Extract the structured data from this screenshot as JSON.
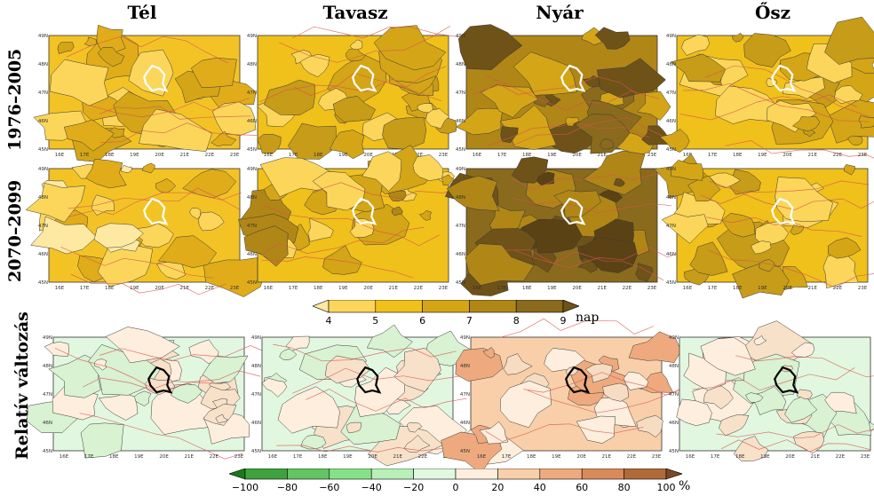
{
  "season_titles": [
    "Tél",
    "Tavasz",
    "Nyár",
    "Ősz"
  ],
  "row_labels": [
    "1976–2005",
    "2070–2099",
    "Relatív változás"
  ],
  "lat_ticks": [
    "45N",
    "46N",
    "47N",
    "48N",
    "49N"
  ],
  "lon_ticks": [
    "16E",
    "17E",
    "18E",
    "19E",
    "20E",
    "21E",
    "22E",
    "23E"
  ],
  "colorbar_days": {
    "ticks": [
      "4",
      "5",
      "6",
      "7",
      "8",
      "9"
    ],
    "unit": "nap",
    "colors": [
      "#fde9a2",
      "#fbd65a",
      "#f0c01b",
      "#d4a516",
      "#b08617",
      "#8a6a1c",
      "#6e5218"
    ]
  },
  "colorbar_pct": {
    "ticks": [
      "−100",
      "−80",
      "−60",
      "−40",
      "−20",
      "0",
      "20",
      "40",
      "60",
      "80",
      "100"
    ],
    "unit": "%",
    "colors": [
      "#1a7a1a",
      "#3ea33e",
      "#62c462",
      "#86e286",
      "#b8f0b8",
      "#e2f7e0",
      "#fdeedd",
      "#f8cfa8",
      "#eeaa7e",
      "#d98a5a",
      "#b06a3a",
      "#7a4a24"
    ]
  },
  "panels": {
    "row1": [
      {
        "base": "#f3c326",
        "patches": [
          "#e0ac1a",
          "#fbd65a",
          "#d4a516"
        ]
      },
      {
        "base": "#f0c01b",
        "patches": [
          "#d4a516",
          "#fbd65a",
          "#c79c18"
        ]
      },
      {
        "base": "#b08617",
        "patches": [
          "#8a6a1c",
          "#d4a516",
          "#6e5218"
        ]
      },
      {
        "base": "#f0c01b",
        "patches": [
          "#d4a516",
          "#fbd65a",
          "#c79c18"
        ]
      }
    ],
    "row2": [
      {
        "base": "#f3c326",
        "patches": [
          "#fbd65a",
          "#e0ac1a",
          "#fde9a2"
        ]
      },
      {
        "base": "#f0c01b",
        "patches": [
          "#d4a516",
          "#fbd65a",
          "#b08617"
        ]
      },
      {
        "base": "#8a6a1c",
        "patches": [
          "#6e5218",
          "#b08617",
          "#5a4214"
        ]
      },
      {
        "base": "#f0c01b",
        "patches": [
          "#d4a516",
          "#fbd65a",
          "#c79c18"
        ]
      }
    ],
    "row3": [
      {
        "base": "#e2f7e0",
        "patches": [
          "#fdeedd",
          "#f8e1c9",
          "#d8f2d2"
        ]
      },
      {
        "base": "#e2f7e0",
        "patches": [
          "#fdeedd",
          "#f8e1c9",
          "#d8f2d2"
        ]
      },
      {
        "base": "#f8cfa8",
        "patches": [
          "#fdeedd",
          "#eeaa7e",
          "#f6dcc2"
        ]
      },
      {
        "base": "#e2f7e0",
        "patches": [
          "#fdeedd",
          "#f8e1c9",
          "#d8f2d2"
        ]
      }
    ]
  }
}
